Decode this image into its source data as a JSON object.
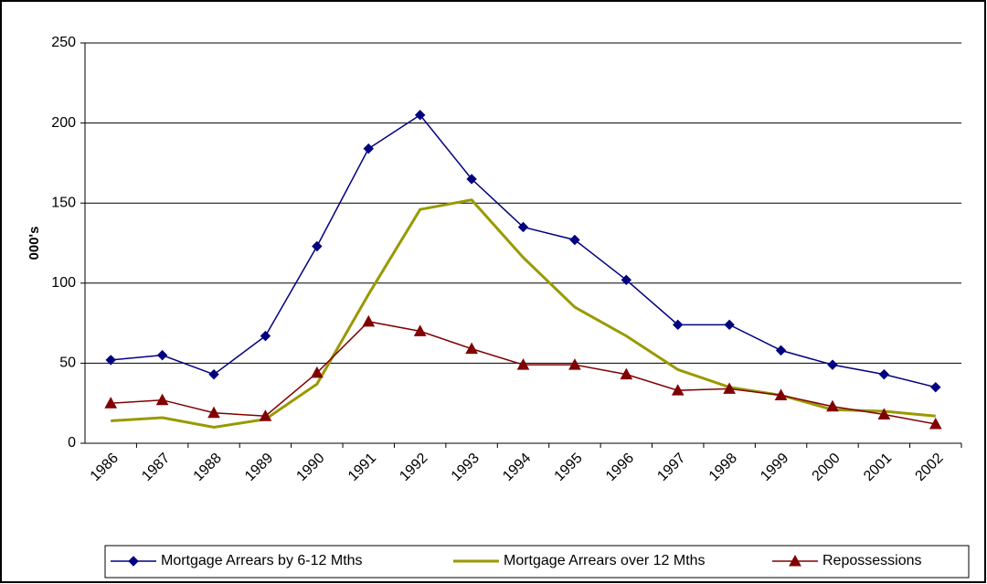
{
  "chart_data": {
    "type": "line",
    "y_label": "000's",
    "categories": [
      "1986",
      "1987",
      "1988",
      "1989",
      "1990",
      "1991",
      "1992",
      "1993",
      "1994",
      "1995",
      "1996",
      "1997",
      "1998",
      "1999",
      "2000",
      "2001",
      "2002"
    ],
    "series": [
      {
        "name": "Mortgage Arrears by 6-12 Mths",
        "color": "#000080",
        "marker": "diamond",
        "values": [
          52,
          55,
          43,
          67,
          123,
          184,
          205,
          165,
          135,
          127,
          102,
          74,
          74,
          58,
          49,
          43,
          35
        ]
      },
      {
        "name": "Mortgage Arrears over 12 Mths",
        "color": "#999900",
        "marker": "none",
        "values": [
          14,
          16,
          10,
          15,
          37,
          93,
          146,
          152,
          116,
          85,
          67,
          46,
          35,
          30,
          21,
          20,
          17
        ]
      },
      {
        "name": "Repossessions",
        "color": "#800000",
        "marker": "triangle",
        "values": [
          25,
          27,
          19,
          17,
          44,
          76,
          70,
          59,
          49,
          49,
          43,
          33,
          34,
          30,
          23,
          18,
          12
        ]
      }
    ],
    "ylim": [
      0,
      250
    ],
    "yticks": [
      0,
      50,
      100,
      150,
      200,
      250
    ],
    "grid": true,
    "legend": "bottom"
  }
}
